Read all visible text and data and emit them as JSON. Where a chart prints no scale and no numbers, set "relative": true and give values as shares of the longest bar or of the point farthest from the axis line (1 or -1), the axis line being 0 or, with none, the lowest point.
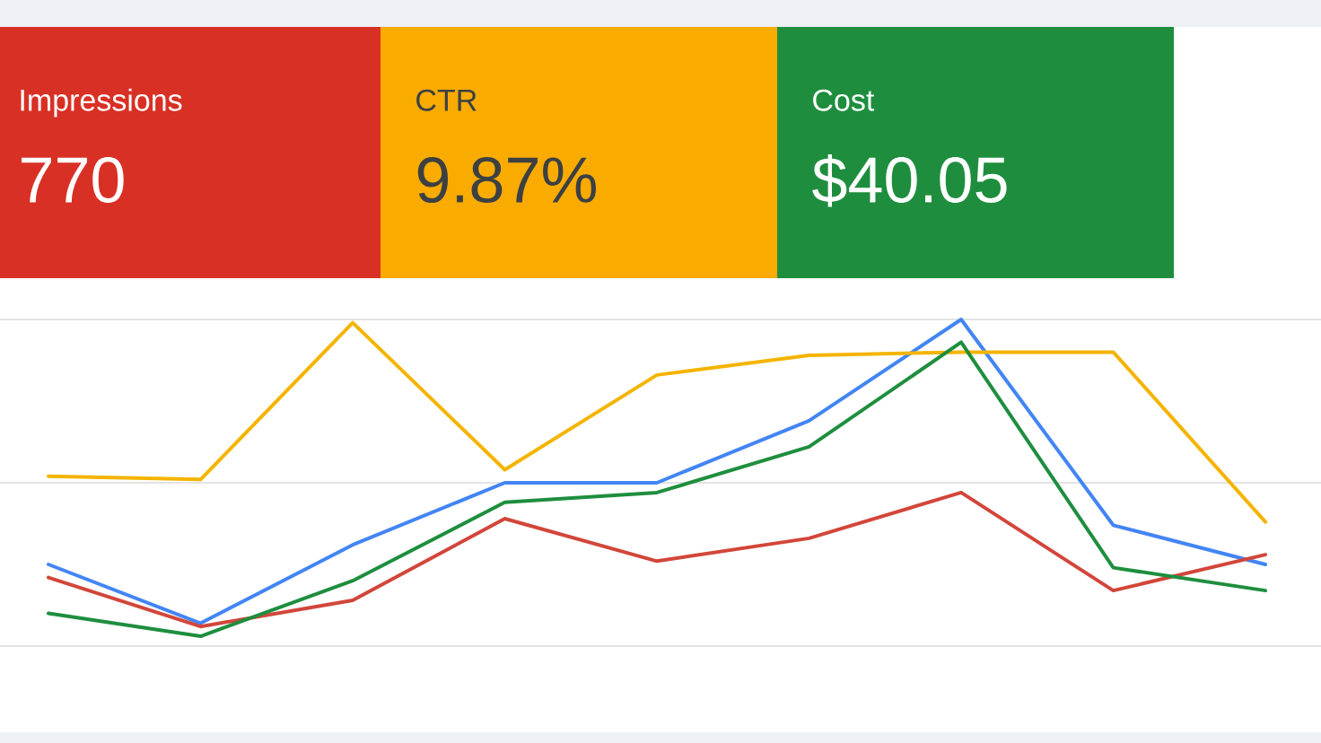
{
  "chart_data": [
    {
      "type": "other",
      "title": "Impressions",
      "annotations": [
        "770"
      ],
      "color": "#d93025"
    },
    {
      "type": "other",
      "title": "CTR",
      "annotations": [
        "9.87%"
      ],
      "color": "#f9ab00"
    },
    {
      "type": "other",
      "title": "Cost",
      "annotations": [
        "$40.05"
      ],
      "color": "#1e8e3e"
    },
    {
      "type": "line",
      "relative": true,
      "ref_lines": [
        {
          "axis": "y",
          "value": 0,
          "color": "#e3e3e3"
        },
        {
          "axis": "y",
          "value": 0.5,
          "color": "#e3e3e3"
        },
        {
          "axis": "y",
          "value": 1,
          "color": "#e3e3e3"
        }
      ],
      "categories": [
        null,
        null,
        null,
        null,
        null,
        null,
        null,
        null,
        null
      ],
      "series": [
        {
          "color": "#4285f4",
          "values": [
            0.25,
            0.07,
            0.31,
            0.5,
            0.5,
            0.69,
            1.0,
            0.37,
            0.25
          ]
        },
        {
          "color": "#d2463a",
          "values": [
            0.21,
            0.06,
            0.14,
            0.39,
            0.26,
            0.33,
            0.47,
            0.17,
            0.28
          ]
        },
        {
          "color": "#f4b400",
          "values": [
            0.52,
            0.51,
            0.99,
            0.54,
            0.83,
            0.89,
            0.9,
            0.9,
            0.38
          ]
        },
        {
          "color": "#1e8e3e",
          "values": [
            0.1,
            0.03,
            0.2,
            0.44,
            0.47,
            0.61,
            0.93,
            0.24,
            0.17
          ]
        }
      ]
    }
  ]
}
